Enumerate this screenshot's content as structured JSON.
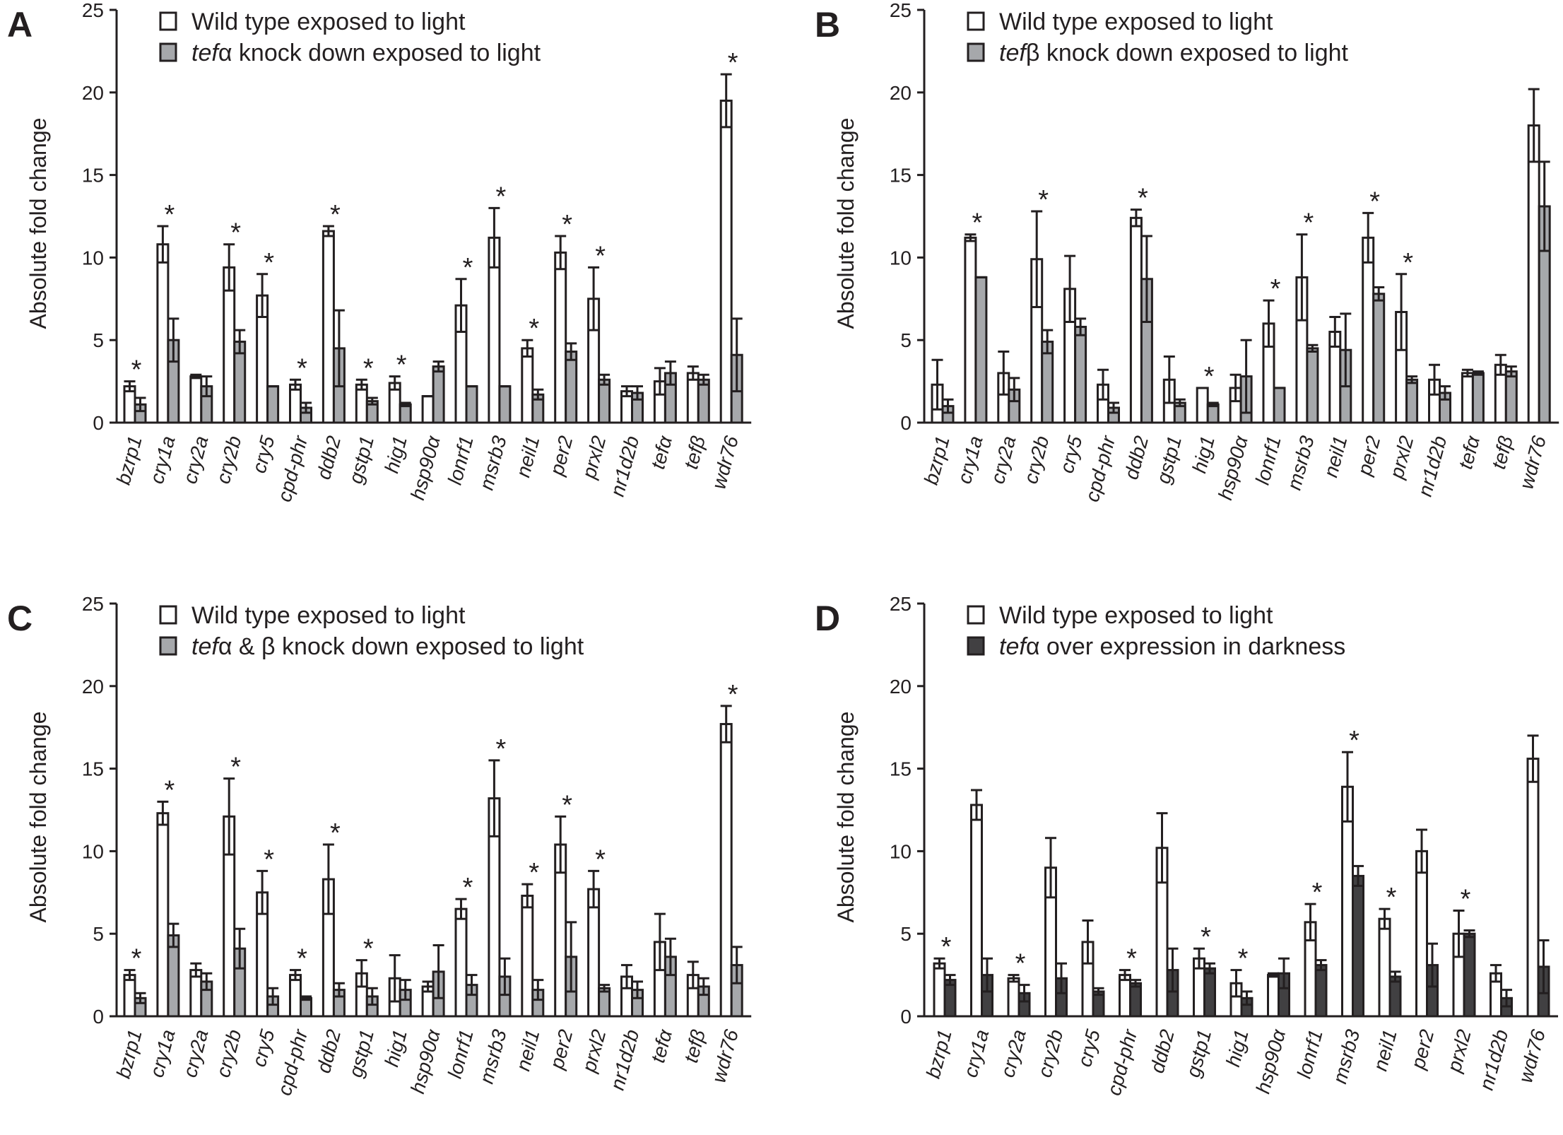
{
  "colors": {
    "wild_type": "#ffffff",
    "knockdown": "#a6a8ab",
    "overexpression": "#414042",
    "stroke": "#231f20"
  },
  "chart_data": [
    {
      "type": "bar",
      "panel": "A",
      "ylabel": "Absolute fold change",
      "ylim": [
        0,
        25
      ],
      "yticks": [
        "0",
        "5",
        "10",
        "15",
        "20",
        "25"
      ],
      "legend": [
        {
          "prefix": "",
          "italic": "",
          "text": "Wild type exposed to light",
          "swatch": "wild_type"
        },
        {
          "prefix": "",
          "italic": "tef",
          "text": "α knock down exposed to light",
          "swatch": "knockdown"
        }
      ],
      "categories": [
        "bzrp1",
        "cry1a",
        "cry2a",
        "cry2b",
        "cry5",
        "cpd-phr",
        "ddb2",
        "gstp1",
        "hig1",
        "hsp90α",
        "lonrf1",
        "msrb3",
        "neil1",
        "per2",
        "prxl2",
        "nr1d2b",
        "tefα",
        "tefβ",
        "wdr76"
      ],
      "series": [
        {
          "name": "Wild type exposed to light",
          "swatch": "wild_type",
          "values": [
            2.2,
            10.8,
            2.8,
            9.4,
            7.7,
            2.3,
            11.6,
            2.3,
            2.4,
            1.6,
            7.1,
            11.2,
            4.5,
            10.3,
            7.5,
            1.9,
            2.5,
            3.0,
            19.5
          ],
          "errors": [
            0.3,
            1.1,
            0.1,
            1.4,
            1.3,
            0.3,
            0.3,
            0.3,
            0.4,
            0.0,
            1.6,
            1.8,
            0.5,
            1.0,
            1.9,
            0.3,
            0.8,
            0.4,
            1.6
          ]
        },
        {
          "name": "tefα knock down exposed to light",
          "swatch": "knockdown",
          "values": [
            1.1,
            5.0,
            2.2,
            4.9,
            2.2,
            0.9,
            4.5,
            1.3,
            1.1,
            3.4,
            2.2,
            2.2,
            1.7,
            4.3,
            2.6,
            1.8,
            3.0,
            2.6,
            4.1
          ],
          "errors": [
            0.4,
            1.3,
            0.6,
            0.7,
            0.0,
            0.3,
            2.3,
            0.2,
            0.1,
            0.3,
            0.0,
            0.0,
            0.3,
            0.5,
            0.3,
            0.4,
            0.7,
            0.3,
            2.2
          ]
        }
      ],
      "significant": [
        "*",
        "*",
        "",
        "*",
        "*",
        "*",
        "*",
        "*",
        "*",
        "",
        "*",
        "*",
        "*",
        "*",
        "*",
        "",
        "",
        "",
        "*"
      ]
    },
    {
      "type": "bar",
      "panel": "B",
      "ylabel": "Absolute fold change",
      "ylim": [
        0,
        25
      ],
      "yticks": [
        "0",
        "5",
        "10",
        "15",
        "20",
        "25"
      ],
      "legend": [
        {
          "prefix": "",
          "italic": "",
          "text": "Wild type exposed to light",
          "swatch": "wild_type"
        },
        {
          "prefix": "",
          "italic": "tef",
          "text": "β knock down exposed to light",
          "swatch": "knockdown"
        }
      ],
      "categories": [
        "bzrp1",
        "cry1a",
        "cry2a",
        "cry2b",
        "cry5",
        "cpd-phr",
        "ddb2",
        "gstp1",
        "hig1",
        "hsp90α",
        "lonrf1",
        "msrb3",
        "neil1",
        "per2",
        "prxl2",
        "nr1d2b",
        "tefα",
        "tefβ",
        "wdr76"
      ],
      "series": [
        {
          "name": "Wild type exposed to light",
          "swatch": "wild_type",
          "values": [
            2.3,
            11.2,
            3.0,
            9.9,
            8.1,
            2.3,
            12.4,
            2.6,
            2.1,
            2.1,
            6.0,
            8.8,
            5.5,
            11.2,
            6.7,
            2.6,
            3.0,
            3.5,
            18.0
          ],
          "errors": [
            1.5,
            0.2,
            1.3,
            2.9,
            2.0,
            0.9,
            0.5,
            1.4,
            0.0,
            0.8,
            1.4,
            2.6,
            0.9,
            1.5,
            2.3,
            0.9,
            0.2,
            0.6,
            2.2
          ]
        },
        {
          "name": "tefβ knock down exposed to light",
          "swatch": "knockdown",
          "values": [
            1.0,
            8.8,
            2.0,
            4.9,
            5.8,
            0.9,
            8.7,
            1.2,
            1.1,
            2.8,
            2.1,
            4.5,
            4.4,
            7.8,
            2.6,
            1.8,
            3.0,
            3.1,
            13.1
          ],
          "errors": [
            0.4,
            0.0,
            0.7,
            0.7,
            0.5,
            0.3,
            2.6,
            0.2,
            0.1,
            2.2,
            0.0,
            0.2,
            2.2,
            0.4,
            0.2,
            0.4,
            0.1,
            0.3,
            2.7
          ]
        }
      ],
      "significant": [
        "",
        "*",
        "",
        "*",
        "",
        "",
        "*",
        "",
        "*",
        "",
        "*",
        "*",
        "",
        "*",
        "*",
        "",
        "",
        "",
        ""
      ]
    },
    {
      "type": "bar",
      "panel": "C",
      "ylabel": "Absolute fold change",
      "ylim": [
        0,
        25
      ],
      "yticks": [
        "0",
        "5",
        "10",
        "15",
        "20",
        "25"
      ],
      "legend": [
        {
          "prefix": "",
          "italic": "",
          "text": "Wild type exposed to light",
          "swatch": "wild_type"
        },
        {
          "prefix": "",
          "italic": "tef",
          "text": "α & β knock down exposed to light",
          "swatch": "knockdown"
        }
      ],
      "categories": [
        "bzrp1",
        "cry1a",
        "cry2a",
        "cry2b",
        "cry5",
        "cpd-phr",
        "ddb2",
        "gstp1",
        "hig1",
        "hsp90α",
        "lonrf1",
        "msrb3",
        "neil1",
        "per2",
        "prxl2",
        "nr1d2b",
        "tefα",
        "tefβ",
        "wdr76"
      ],
      "series": [
        {
          "name": "Wild type exposed to light",
          "swatch": "wild_type",
          "values": [
            2.5,
            12.3,
            2.8,
            12.1,
            7.5,
            2.5,
            8.3,
            2.6,
            2.3,
            1.8,
            6.5,
            13.2,
            7.3,
            10.4,
            7.7,
            2.4,
            4.5,
            2.5,
            17.7
          ],
          "errors": [
            0.3,
            0.7,
            0.4,
            2.3,
            1.3,
            0.3,
            2.1,
            0.8,
            1.4,
            0.3,
            0.6,
            2.3,
            0.7,
            1.7,
            1.1,
            0.7,
            1.7,
            0.8,
            1.1
          ]
        },
        {
          "name": "tefα & β knock down exposed to light",
          "swatch": "knockdown",
          "values": [
            1.1,
            4.9,
            2.1,
            4.1,
            1.2,
            1.1,
            1.6,
            1.2,
            1.6,
            2.7,
            1.9,
            2.4,
            1.6,
            3.6,
            1.7,
            1.6,
            3.6,
            1.8,
            3.1
          ],
          "errors": [
            0.3,
            0.7,
            0.5,
            1.2,
            0.5,
            0.1,
            0.4,
            0.5,
            0.6,
            1.6,
            0.6,
            1.1,
            0.6,
            2.1,
            0.2,
            0.5,
            1.1,
            0.5,
            1.1
          ]
        }
      ],
      "significant": [
        "*",
        "*",
        "",
        "*",
        "*",
        "*",
        "*",
        "*",
        "",
        "",
        "*",
        "*",
        "*",
        "*",
        "*",
        "",
        "",
        "",
        "*"
      ]
    },
    {
      "type": "bar",
      "panel": "D",
      "ylabel": "Absolute fold change",
      "ylim": [
        0,
        25
      ],
      "yticks": [
        "0",
        "5",
        "10",
        "15",
        "20",
        "25"
      ],
      "legend": [
        {
          "prefix": "",
          "italic": "",
          "text": "Wild type exposed to light",
          "swatch": "wild_type"
        },
        {
          "prefix": "",
          "italic": "tef",
          "text": "α over expression in darkness",
          "swatch": "overexpression"
        }
      ],
      "categories": [
        "bzrp1",
        "cry1a",
        "cry2a",
        "cry2b",
        "cry5",
        "cpd-phr",
        "ddb2",
        "gstp1",
        "hig1",
        "hsp90α",
        "lonrf1",
        "msrb3",
        "neil1",
        "per2",
        "prxl2",
        "nr1d2b",
        "wdr76"
      ],
      "series": [
        {
          "name": "Wild type exposed to light",
          "swatch": "wild_type",
          "values": [
            3.2,
            12.8,
            2.3,
            9.0,
            4.5,
            2.5,
            10.2,
            3.5,
            2.0,
            2.5,
            5.7,
            13.9,
            5.9,
            10.0,
            5.0,
            2.6,
            15.6
          ],
          "errors": [
            0.3,
            0.9,
            0.2,
            1.8,
            1.3,
            0.3,
            2.1,
            0.6,
            0.8,
            0.1,
            1.1,
            2.1,
            0.6,
            1.3,
            1.4,
            0.5,
            1.4
          ]
        },
        {
          "name": "tefα over expression in darkness",
          "swatch": "overexpression",
          "values": [
            2.2,
            2.5,
            1.4,
            2.3,
            1.5,
            2.0,
            2.8,
            2.9,
            1.1,
            2.6,
            3.1,
            8.5,
            2.4,
            3.1,
            5.0,
            1.1,
            3.0
          ],
          "errors": [
            0.3,
            1.0,
            0.5,
            0.9,
            0.2,
            0.2,
            1.3,
            0.3,
            0.4,
            0.9,
            0.3,
            0.6,
            0.3,
            1.3,
            0.2,
            0.5,
            1.6
          ]
        }
      ],
      "significant": [
        "*",
        "",
        "*",
        "",
        "",
        "*",
        "",
        "*",
        "*",
        "",
        "*",
        "*",
        "*",
        "",
        "*",
        "",
        ""
      ]
    }
  ]
}
